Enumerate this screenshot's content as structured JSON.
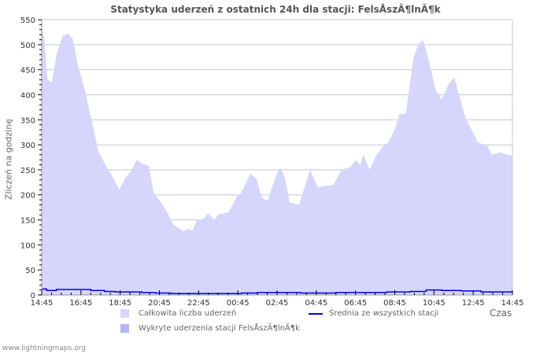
{
  "title": "Statystyka uderzeń z ostatnich 24h dla stacji: FelsÅszÃ¶lnÃ¶k",
  "footer": "www.lightningmaps.org",
  "colors": {
    "total_fill": "#d6d6fc",
    "station_fill": "#b4b4f8",
    "average_line": "#0000ee",
    "grid": "#c8c8c8"
  },
  "legend": {
    "total": "Całkowita liczba uderzeń",
    "station": "Wykryte uderzenia stacji FelsÅszÃ¶lnÃ¶k",
    "average": "Średnia ze wszystkich stacji"
  },
  "chart_data": {
    "type": "area",
    "title": "Statystyka uderzeń z ostatnich 24h dla stacji: FelsÅszÃ¶lnÃ¶k",
    "xlabel": "Czas",
    "ylabel": "Zliczeń na godzinę",
    "ylim": [
      0,
      550
    ],
    "yticks": [
      0,
      50,
      100,
      150,
      200,
      250,
      300,
      350,
      400,
      450,
      500,
      550
    ],
    "xticks": [
      "14:45",
      "16:45",
      "18:45",
      "20:45",
      "22:45",
      "00:45",
      "02:45",
      "04:45",
      "06:45",
      "08:45",
      "10:45",
      "12:45",
      "14:45"
    ],
    "grid": true,
    "legend_position": "bottom",
    "x_hours_from_start": [
      0,
      0.12,
      0.3,
      0.52,
      0.76,
      1.06,
      1.37,
      1.6,
      1.83,
      2.2,
      2.6,
      2.87,
      3.18,
      3.56,
      3.96,
      4.28,
      4.6,
      4.84,
      5.15,
      5.46,
      5.7,
      6.08,
      6.4,
      6.72,
      7.2,
      7.52,
      7.68,
      7.92,
      8.24,
      8.48,
      8.8,
      9.04,
      9.52,
      10.0,
      10.16,
      10.64,
      10.96,
      11.2,
      11.52,
      11.92,
      12.16,
      12.4,
      12.64,
      13.12,
      13.44,
      13.68,
      14.08,
      14.48,
      14.88,
      15.28,
      15.76,
      16.0,
      16.24,
      16.4,
      16.72,
      17.04,
      17.36,
      17.68,
      18.0,
      18.24,
      18.56,
      18.96,
      19.2,
      19.44,
      19.76,
      20.08,
      20.4,
      20.72,
      21.04,
      21.28,
      21.6,
      21.92,
      22.24,
      22.72,
      22.96,
      23.32,
      24.0
    ],
    "series": [
      {
        "name": "Całkowita liczba uderzeń",
        "values": [
          535,
          515,
          430,
          425,
          480,
          518,
          522,
          510,
          460,
          410,
          340,
          290,
          265,
          240,
          210,
          235,
          250,
          270,
          262,
          258,
          205,
          185,
          165,
          140,
          128,
          132,
          128,
          150,
          152,
          163,
          150,
          162,
          165,
          200,
          203,
          242,
          232,
          195,
          188,
          236,
          255,
          235,
          185,
          180,
          220,
          250,
          215,
          218,
          220,
          250,
          256,
          270,
          260,
          280,
          250,
          278,
          295,
          305,
          330,
          362,
          362,
          475,
          500,
          510,
          465,
          410,
          390,
          420,
          435,
          400,
          355,
          330,
          305,
          298,
          280,
          285,
          278
        ]
      },
      {
        "name": "Wykryte uderzenia stacji FelsÅszÃ¶lnÃ¶k",
        "values": []
      },
      {
        "name": "Średnia ze wszystkich stacji",
        "x_hours_from_start": [
          0,
          0.25,
          0.75,
          2.5,
          3.2,
          3.75,
          5.1,
          5.8,
          6.6,
          8.2,
          10.2,
          11.0,
          12.2,
          13.2,
          14.2,
          15.0,
          16.8,
          17.6,
          18.8,
          19.6,
          20.4,
          21.4,
          22.4,
          24.0
        ],
        "values": [
          12,
          9,
          11,
          9,
          7,
          6,
          5,
          4,
          3,
          3,
          4,
          5,
          5,
          4,
          4,
          5,
          5,
          6,
          7,
          10,
          9,
          8,
          6,
          6
        ]
      }
    ]
  }
}
